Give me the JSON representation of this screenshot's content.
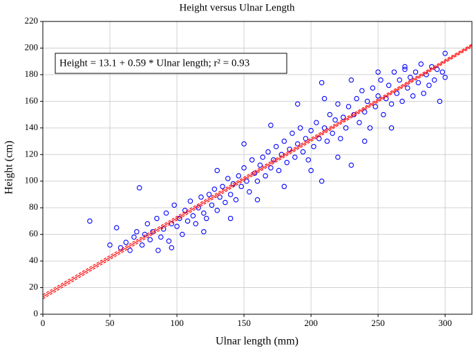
{
  "chart_data": {
    "type": "scatter",
    "title": "Height versus Ulnar Length",
    "x_label": "Ulnar length (mm)",
    "y_label": "Height (cm)",
    "annotation": "Height = 13.1 + 0.59 * Ulnar length; r² = 0.93",
    "xlim": [
      0,
      320
    ],
    "ylim": [
      0,
      220
    ],
    "xticks": [
      0,
      50,
      100,
      150,
      200,
      250,
      300
    ],
    "yticks": [
      0,
      20,
      40,
      60,
      80,
      100,
      120,
      140,
      160,
      180,
      200,
      220
    ],
    "grid": true,
    "x": [
      35,
      50,
      55,
      58,
      62,
      65,
      68,
      70,
      72,
      74,
      76,
      78,
      80,
      82,
      85,
      88,
      90,
      92,
      94,
      96,
      98,
      100,
      102,
      104,
      106,
      108,
      110,
      112,
      114,
      116,
      118,
      120,
      122,
      124,
      126,
      128,
      130,
      132,
      134,
      136,
      138,
      140,
      142,
      144,
      146,
      148,
      150,
      152,
      154,
      156,
      158,
      160,
      162,
      164,
      166,
      168,
      170,
      172,
      174,
      176,
      178,
      180,
      182,
      184,
      186,
      188,
      190,
      192,
      194,
      196,
      198,
      200,
      202,
      204,
      206,
      208,
      208,
      210,
      212,
      214,
      216,
      218,
      220,
      222,
      224,
      226,
      228,
      230,
      232,
      234,
      236,
      238,
      240,
      242,
      244,
      246,
      248,
      250,
      252,
      254,
      256,
      258,
      260,
      262,
      264,
      266,
      268,
      270,
      272,
      274,
      276,
      278,
      280,
      282,
      284,
      286,
      288,
      290,
      292,
      294,
      296,
      298,
      300,
      300,
      86,
      96,
      120,
      140,
      160,
      180,
      200,
      220,
      240,
      260,
      130,
      150,
      170,
      190,
      210,
      230,
      250,
      270
    ],
    "series": [
      {
        "name": "Observations",
        "color": "#0000ff",
        "values": [
          70,
          52,
          65,
          50,
          54,
          48,
          58,
          62,
          95,
          52,
          60,
          68,
          56,
          62,
          72,
          58,
          64,
          76,
          55,
          68,
          82,
          66,
          72,
          60,
          78,
          70,
          85,
          74,
          68,
          80,
          88,
          76,
          72,
          90,
          82,
          94,
          78,
          88,
          96,
          84,
          102,
          90,
          98,
          86,
          104,
          96,
          110,
          100,
          92,
          116,
          106,
          100,
          112,
          118,
          104,
          122,
          110,
          116,
          126,
          108,
          120,
          130,
          114,
          124,
          136,
          118,
          128,
          140,
          122,
          132,
          116,
          138,
          126,
          144,
          132,
          100,
          174,
          140,
          130,
          150,
          136,
          146,
          158,
          132,
          148,
          140,
          156,
          112,
          150,
          162,
          144,
          168,
          152,
          160,
          140,
          170,
          156,
          164,
          176,
          150,
          162,
          172,
          158,
          182,
          166,
          176,
          160,
          184,
          170,
          178,
          164,
          182,
          174,
          188,
          166,
          180,
          172,
          186,
          176,
          184,
          160,
          182,
          196,
          178,
          48,
          50,
          62,
          72,
          86,
          96,
          108,
          118,
          130,
          140,
          108,
          128,
          142,
          158,
          162,
          176,
          182,
          186
        ]
      }
    ],
    "fit": {
      "color": "#ff0000",
      "x": [
        0,
        320
      ],
      "values": [
        13.1,
        201.9
      ],
      "lower": [
        11.6,
        200.9
      ],
      "upper": [
        14.6,
        202.9
      ]
    }
  }
}
